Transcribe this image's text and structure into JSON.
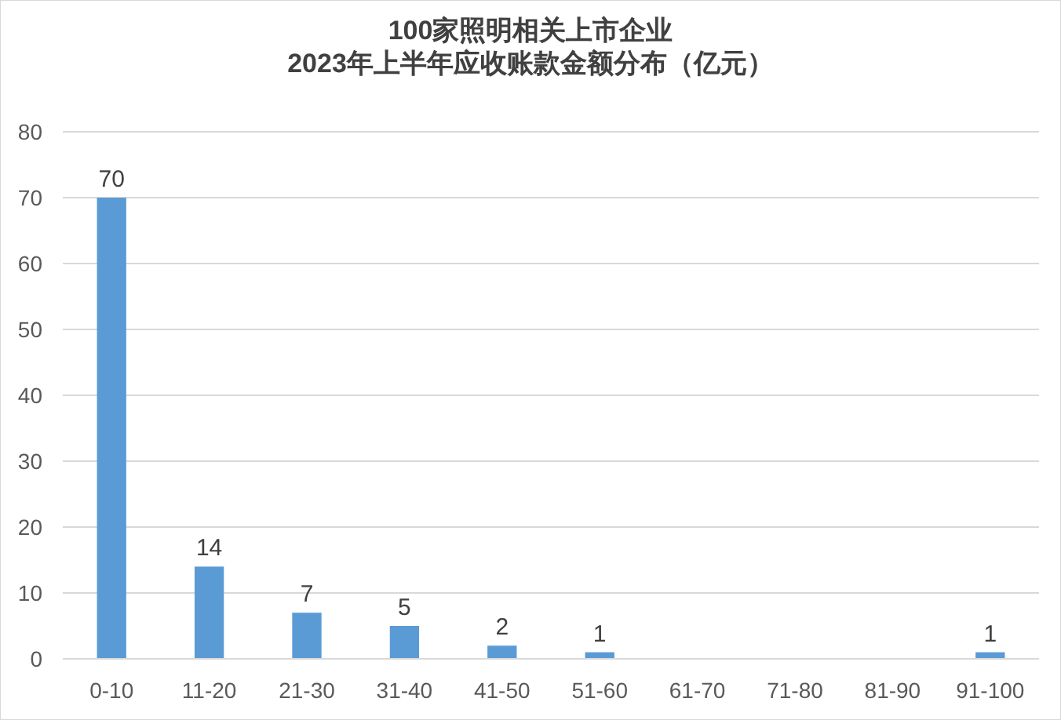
{
  "chart_data": {
    "type": "bar",
    "title": "100家照明相关上市企业\n2023年上半年应收账款金额分布（亿元）",
    "categories": [
      "0-10",
      "11-20",
      "21-30",
      "31-40",
      "41-50",
      "51-60",
      "61-70",
      "71-80",
      "81-90",
      "91-100"
    ],
    "values": [
      70,
      14,
      7,
      5,
      2,
      1,
      0,
      0,
      0,
      1
    ],
    "value_labels": [
      "70",
      "14",
      "7",
      "5",
      "2",
      "1",
      null,
      null,
      null,
      "1"
    ],
    "color": "#5b9bd5",
    "ylim": [
      0,
      80
    ],
    "yticks": [
      0,
      10,
      20,
      30,
      40,
      50,
      60,
      70,
      80
    ],
    "grid": "y"
  }
}
